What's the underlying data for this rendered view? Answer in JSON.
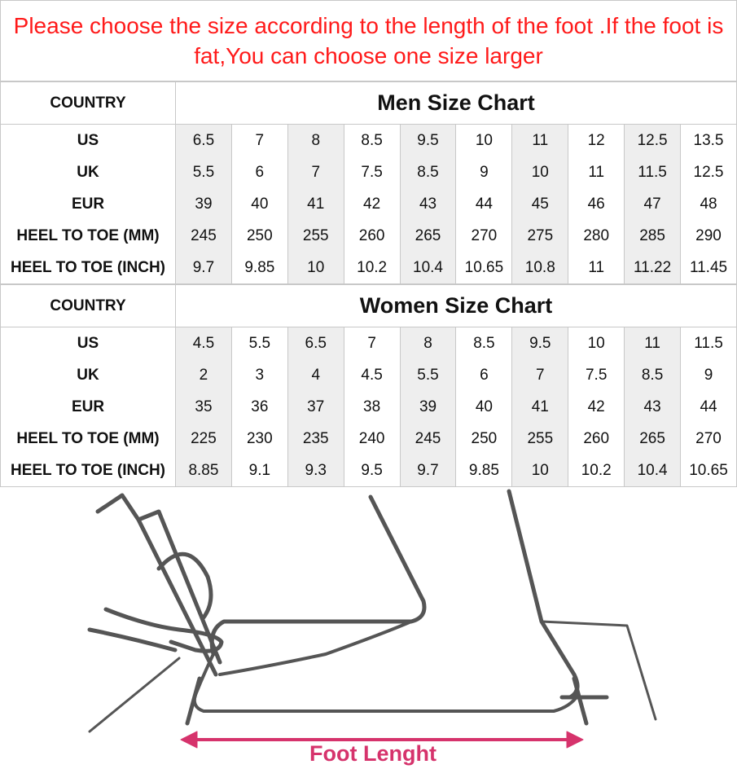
{
  "notice": "Please choose the size according to the length of the foot .If the foot is fat,You can choose one size larger",
  "accent_color": "#ff1a1a",
  "men": {
    "country_label": "COUNTRY",
    "title": "Men Size Chart",
    "rows": [
      {
        "label": "US",
        "values": [
          "6.5",
          "7",
          "8",
          "8.5",
          "9.5",
          "10",
          "11",
          "12",
          "12.5",
          "13.5"
        ]
      },
      {
        "label": "UK",
        "values": [
          "5.5",
          "6",
          "7",
          "7.5",
          "8.5",
          "9",
          "10",
          "11",
          "11.5",
          "12.5"
        ]
      },
      {
        "label": "EUR",
        "values": [
          "39",
          "40",
          "41",
          "42",
          "43",
          "44",
          "45",
          "46",
          "47",
          "48"
        ]
      },
      {
        "label": "HEEL TO TOE (MM)",
        "values": [
          "245",
          "250",
          "255",
          "260",
          "265",
          "270",
          "275",
          "280",
          "285",
          "290"
        ]
      },
      {
        "label": "HEEL TO TOE (INCH)",
        "values": [
          "9.7",
          "9.85",
          "10",
          "10.2",
          "10.4",
          "10.65",
          "10.8",
          "11",
          "11.22",
          "11.45"
        ]
      }
    ]
  },
  "women": {
    "country_label": "COUNTRY",
    "title": "Women Size Chart",
    "rows": [
      {
        "label": "US",
        "values": [
          "4.5",
          "5.5",
          "6.5",
          "7",
          "8",
          "8.5",
          "9.5",
          "10",
          "11",
          "11.5"
        ]
      },
      {
        "label": "UK",
        "values": [
          "2",
          "3",
          "4",
          "4.5",
          "5.5",
          "6",
          "7",
          "7.5",
          "8.5",
          "9"
        ]
      },
      {
        "label": "EUR",
        "values": [
          "35",
          "36",
          "37",
          "38",
          "39",
          "40",
          "41",
          "42",
          "43",
          "44"
        ]
      },
      {
        "label": "HEEL TO TOE (MM)",
        "values": [
          "225",
          "230",
          "235",
          "240",
          "245",
          "250",
          "255",
          "260",
          "265",
          "270"
        ]
      },
      {
        "label": "HEEL TO TOE (INCH)",
        "values": [
          "8.85",
          "9.1",
          "9.3",
          "9.5",
          "9.7",
          "9.85",
          "10",
          "10.2",
          "10.4",
          "10.65"
        ]
      }
    ]
  },
  "illustration": {
    "caption": "Foot Lenght",
    "caption_color": "#d6336c"
  }
}
